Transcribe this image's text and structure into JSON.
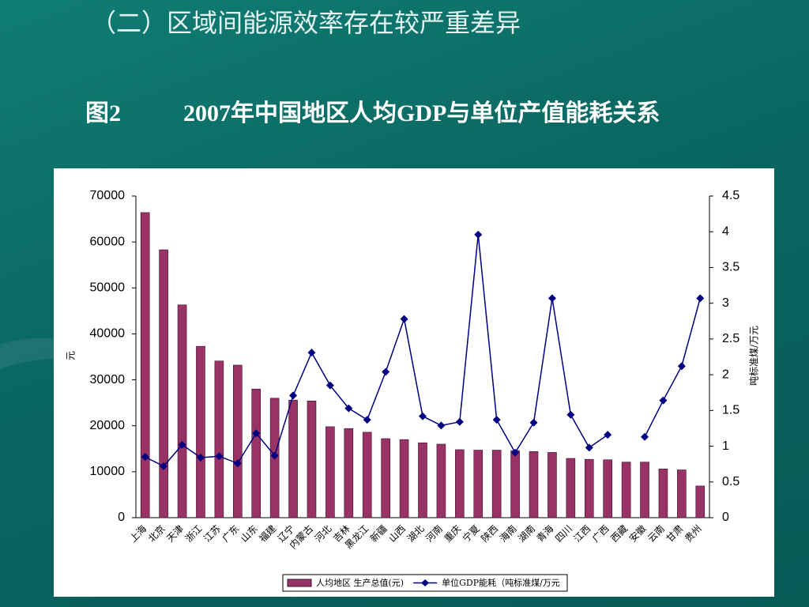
{
  "heading": "（二）区域间能源效率存在较严重差异",
  "figure_number": "图2",
  "chart_data": {
    "type": "bar",
    "title": "2007年中国地区人均GDP与单位产值能耗关系",
    "y_label": "元",
    "y2_label": "吨标准煤/万元",
    "categories": [
      "上海",
      "北京",
      "天津",
      "浙江",
      "江苏",
      "广东",
      "山东",
      "福建",
      "辽宁",
      "内蒙古",
      "河北",
      "吉林",
      "黑龙江",
      "新疆",
      "山西",
      "湖北",
      "河南",
      "重庆",
      "宁夏",
      "陕西",
      "海南",
      "湖南",
      "青海",
      "四川",
      "江西",
      "广西",
      "西藏",
      "安徽",
      "云南",
      "甘肃",
      "贵州"
    ],
    "series": [
      {
        "name": "人均地区 生产总值(元)",
        "type": "bar",
        "axis": "y",
        "color": "#993366",
        "values": [
          66400,
          58300,
          46300,
          37300,
          34100,
          33200,
          28000,
          26000,
          25600,
          25400,
          19800,
          19400,
          18600,
          17200,
          17000,
          16300,
          16000,
          14800,
          14700,
          14700,
          14600,
          14400,
          14200,
          12900,
          12700,
          12600,
          12100,
          12100,
          10600,
          10400,
          6900
        ]
      },
      {
        "name": "单位GDP能耗（吨标准煤/万元",
        "type": "line",
        "axis": "y2",
        "color": "#000080",
        "values": [
          0.85,
          0.72,
          1.02,
          0.84,
          0.86,
          0.76,
          1.18,
          0.87,
          1.71,
          2.31,
          1.85,
          1.53,
          1.37,
          2.04,
          2.78,
          1.42,
          1.29,
          1.34,
          3.96,
          1.37,
          0.91,
          1.33,
          3.07,
          1.44,
          0.98,
          1.16,
          null,
          1.13,
          1.64,
          2.12,
          3.07
        ]
      }
    ],
    "ylim": [
      0,
      70000
    ],
    "yticks": [
      0,
      10000,
      20000,
      30000,
      40000,
      50000,
      60000,
      70000
    ],
    "y2lim": [
      0,
      4.5
    ],
    "y2ticks": [
      0,
      0.5,
      1,
      1.5,
      2,
      2.5,
      3,
      3.5,
      4,
      4.5
    ],
    "grid": false,
    "legend": "bottom"
  }
}
